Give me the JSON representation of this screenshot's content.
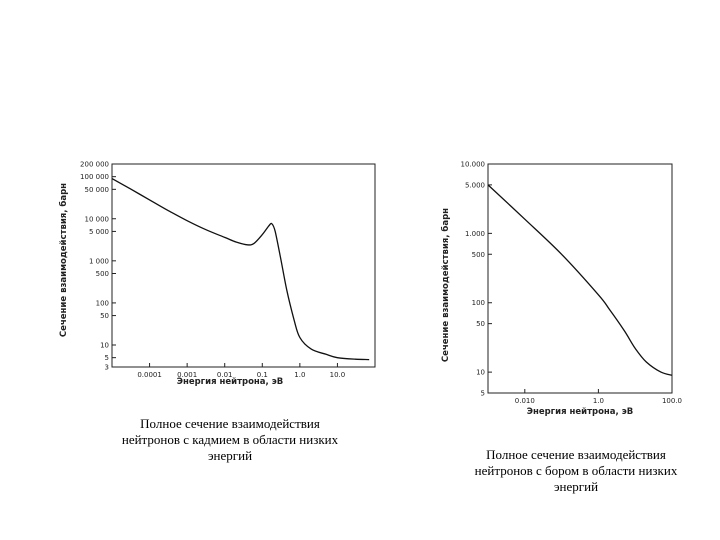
{
  "colors": {
    "line": "#111111",
    "axis": "#222222",
    "background": "#ffffff"
  },
  "chart_data": [
    {
      "type": "line",
      "title": "",
      "ylabel": "Сечение взаимодействия, барн",
      "xlabel": "Энергия нейтрона, эВ",
      "xscale": "log",
      "yscale": "log",
      "xlim": [
        1e-05,
        100
      ],
      "ylim": [
        3,
        200000
      ],
      "x_ticks": [
        {
          "value": 0.0001,
          "label": "0.0001"
        },
        {
          "value": 0.001,
          "label": "0.001"
        },
        {
          "value": 0.01,
          "label": "0.01"
        },
        {
          "value": 0.1,
          "label": "0.1"
        },
        {
          "value": 1,
          "label": "1.0"
        },
        {
          "value": 10,
          "label": "10.0"
        }
      ],
      "y_ticks": [
        {
          "value": 200000,
          "label": "200 000"
        },
        {
          "value": 100000,
          "label": "100 000"
        },
        {
          "value": 50000,
          "label": "50 000"
        },
        {
          "value": 10000,
          "label": "10 000"
        },
        {
          "value": 5000,
          "label": "5 000"
        },
        {
          "value": 1000,
          "label": "1 000"
        },
        {
          "value": 500,
          "label": "500"
        },
        {
          "value": 100,
          "label": "100"
        },
        {
          "value": 50,
          "label": "50"
        },
        {
          "value": 10,
          "label": "10"
        },
        {
          "value": 5,
          "label": "5"
        },
        {
          "value": 3,
          "label": "3"
        }
      ],
      "series": [
        {
          "x": [
            1e-05,
            3e-05,
            0.0001,
            0.0003,
            0.001,
            0.003,
            0.01,
            0.02,
            0.04,
            0.06,
            0.1,
            0.15,
            0.18,
            0.22,
            0.3,
            0.45,
            0.7,
            1.0,
            2.0,
            5.0,
            10,
            30,
            70
          ],
          "y": [
            90000,
            52000,
            28000,
            16000,
            9000,
            5600,
            3600,
            2800,
            2400,
            2600,
            4200,
            6800,
            7600,
            5000,
            1300,
            200,
            40,
            15,
            8,
            6,
            5,
            4.6,
            4.5
          ]
        }
      ]
    },
    {
      "type": "line",
      "title": "",
      "ylabel": "Сечение взаимодействия, барн",
      "xlabel": "Энергия нейтрона, эВ",
      "xscale": "log",
      "yscale": "log",
      "xlim": [
        0.001,
        100
      ],
      "ylim": [
        5,
        10000
      ],
      "x_ticks": [
        {
          "value": 0.01,
          "label": "0.010"
        },
        {
          "value": 1,
          "label": "1.0"
        },
        {
          "value": 100,
          "label": "100.0"
        }
      ],
      "y_ticks": [
        {
          "value": 10000,
          "label": "10.000"
        },
        {
          "value": 5000,
          "label": "5.000"
        },
        {
          "value": 1000,
          "label": "1.000"
        },
        {
          "value": 500,
          "label": "500"
        },
        {
          "value": 100,
          "label": "100"
        },
        {
          "value": 50,
          "label": "50"
        },
        {
          "value": 10,
          "label": "10"
        },
        {
          "value": 5,
          "label": "5"
        }
      ],
      "series": [
        {
          "x": [
            0.001,
            0.01,
            0.1,
            1,
            2,
            5,
            10,
            20,
            50,
            100
          ],
          "y": [
            5000,
            1600,
            500,
            130,
            80,
            40,
            22,
            14,
            10,
            9
          ]
        }
      ]
    }
  ],
  "captions": [
    {
      "lines": [
        "Полное сечение взаимодействия",
        "нейтронов с кадмием в области низких",
        "энергий"
      ]
    },
    {
      "lines": [
        "Полное сечение взаимодействия",
        "нейтронов с бором в области низких",
        "энергий"
      ]
    }
  ]
}
